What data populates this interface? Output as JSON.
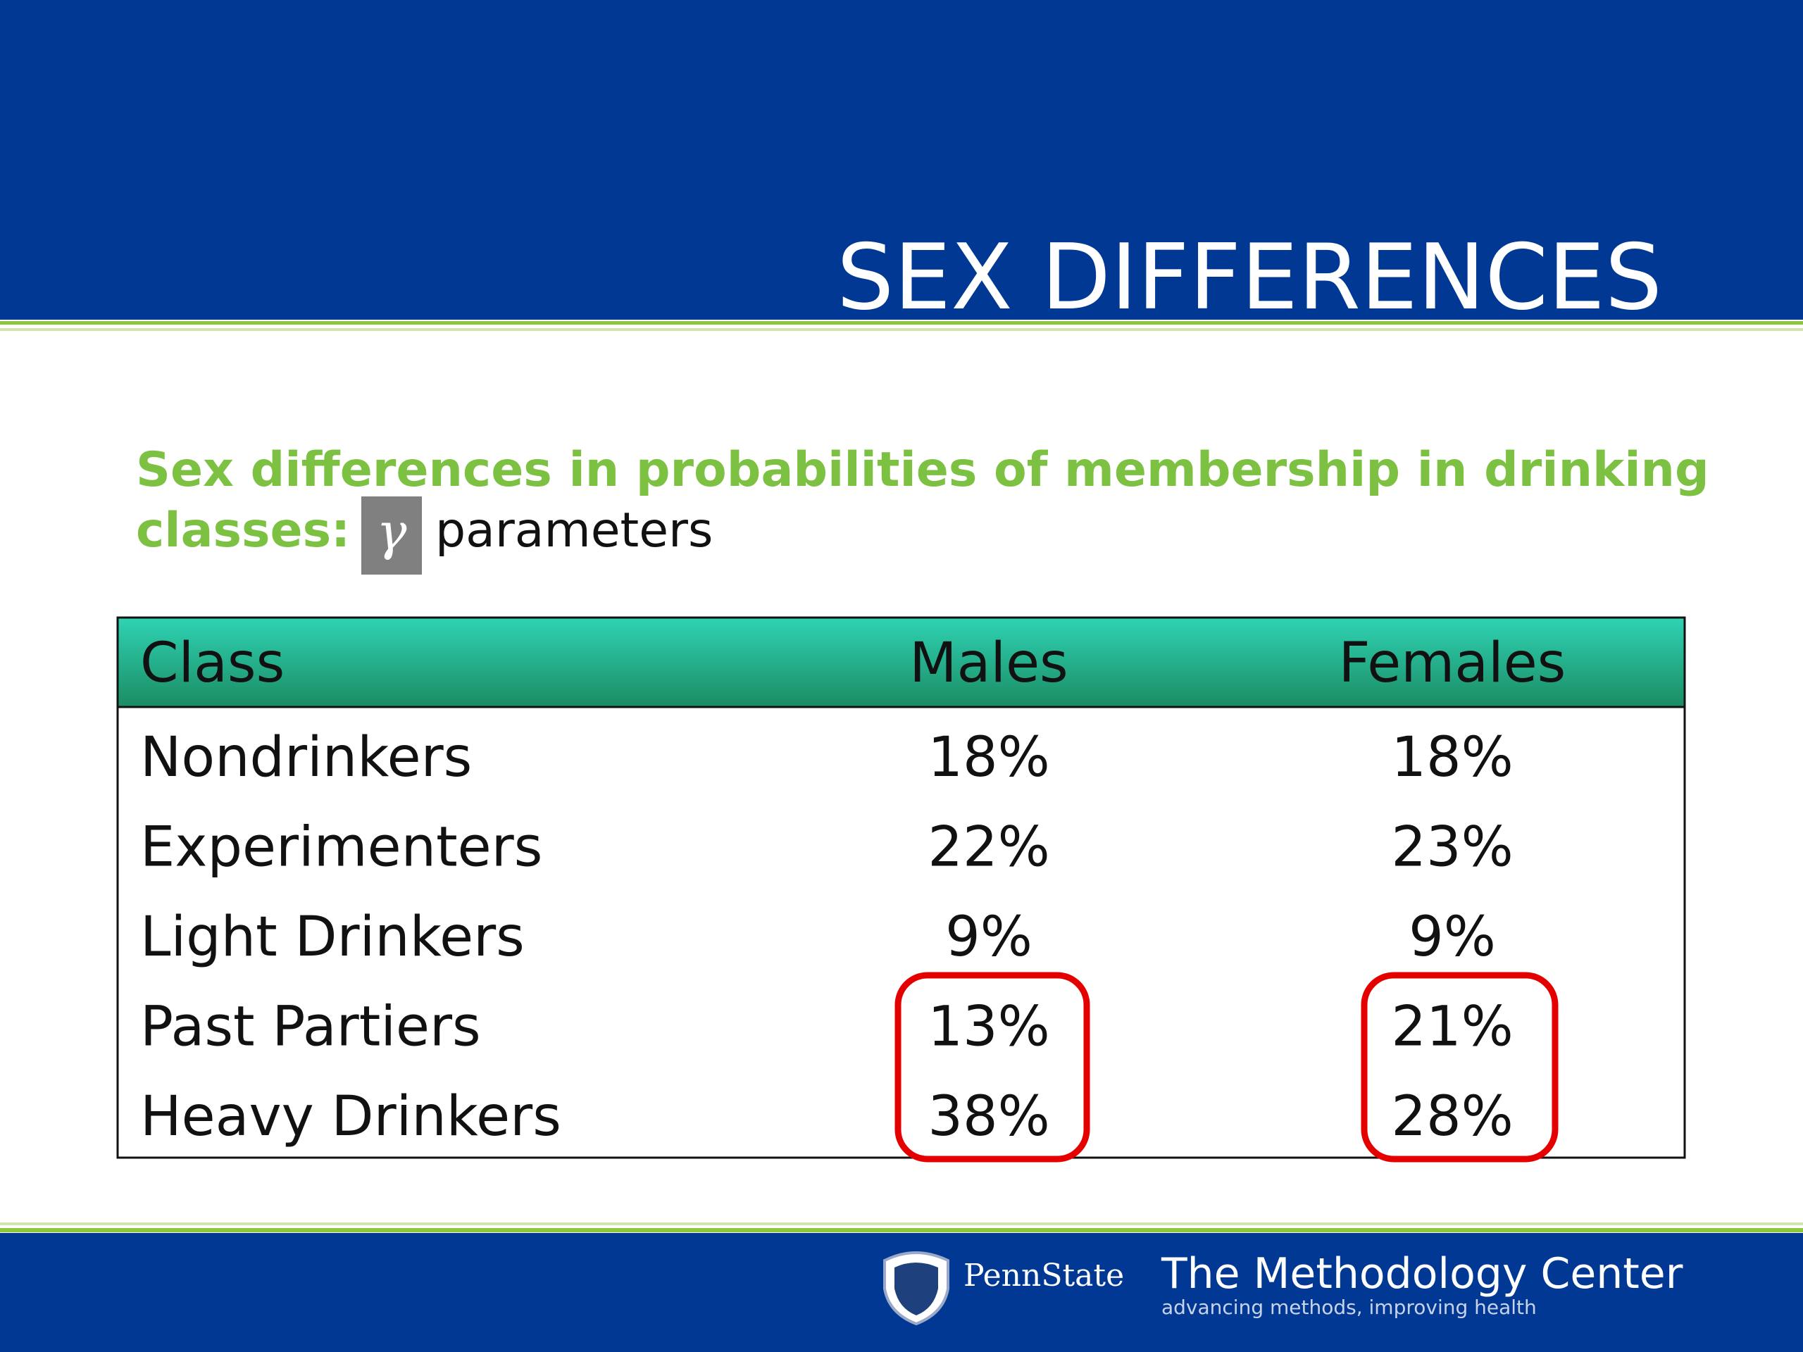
{
  "header": {
    "title": "SEX DIFFERENCES"
  },
  "subtitle": {
    "line1": "Sex differences in probabilities of membership in drinking",
    "line2": "classes:",
    "symbol": "γ",
    "rest": "parameters"
  },
  "table": {
    "columns": [
      "Class",
      "Males",
      "Females"
    ],
    "rows": [
      [
        "Nondrinkers",
        "18%",
        "18%"
      ],
      [
        "Experimenters",
        "22%",
        "23%"
      ],
      [
        "Light Drinkers",
        "9%",
        "9%"
      ],
      [
        "Past Partiers",
        "13%",
        "21%"
      ],
      [
        "Heavy Drinkers",
        "38%",
        "28%"
      ]
    ]
  },
  "footer": {
    "university": "PennState",
    "center": "The Methodology Center",
    "tagline": "advancing methods, improving health"
  }
}
